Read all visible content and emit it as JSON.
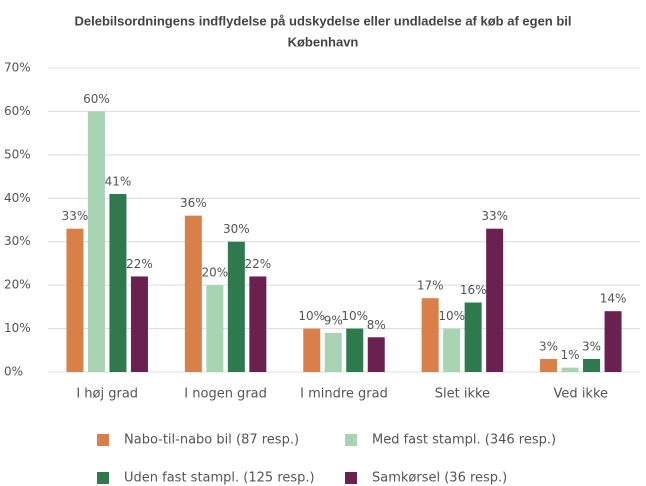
{
  "chart_data": {
    "type": "bar",
    "title": "Delebilsordningens indflydelse på udskydelse eller undladelse af køb af egen bil",
    "subtitle": "København",
    "categories": [
      "I høj grad",
      "I nogen grad",
      "I mindre grad",
      "Slet ikke",
      "Ved ikke"
    ],
    "series": [
      {
        "name": "Nabo-til-nabo bil (87 resp.)",
        "color": "#d9804a",
        "values": [
          33,
          36,
          10,
          17,
          3
        ],
        "value_labels": [
          "33%",
          "36%",
          "10%",
          "17%",
          "3%"
        ]
      },
      {
        "name": "Med fast stampl. (346 resp.)",
        "color": "#a8d4b4",
        "values": [
          60,
          20,
          9,
          10,
          1
        ],
        "value_labels": [
          "60%",
          "20%",
          "9%",
          "10%",
          "1%"
        ]
      },
      {
        "name": "Uden fast stampl. (125 resp.)",
        "color": "#2e7a4e",
        "values": [
          41,
          30,
          10,
          16,
          3
        ],
        "value_labels": [
          "41%",
          "30%",
          "10%",
          "16%",
          "3%"
        ]
      },
      {
        "name": "Samkørsel (36 resp.)",
        "color": "#6b2150",
        "values": [
          22,
          22,
          8,
          33,
          14
        ],
        "value_labels": [
          "22%",
          "22%",
          "8%",
          "33%",
          "14%"
        ]
      }
    ],
    "ylim": [
      0,
      70
    ],
    "yticks": [
      {
        "value": 0,
        "label": "0%"
      },
      {
        "value": 10,
        "label": "10%"
      },
      {
        "value": 20,
        "label": "20%"
      },
      {
        "value": 30,
        "label": "30%"
      },
      {
        "value": 40,
        "label": "40%"
      },
      {
        "value": 50,
        "label": "50%"
      },
      {
        "value": 60,
        "label": "60%"
      },
      {
        "value": 70,
        "label": "70%"
      }
    ],
    "grid": true,
    "legend": "bottom"
  }
}
